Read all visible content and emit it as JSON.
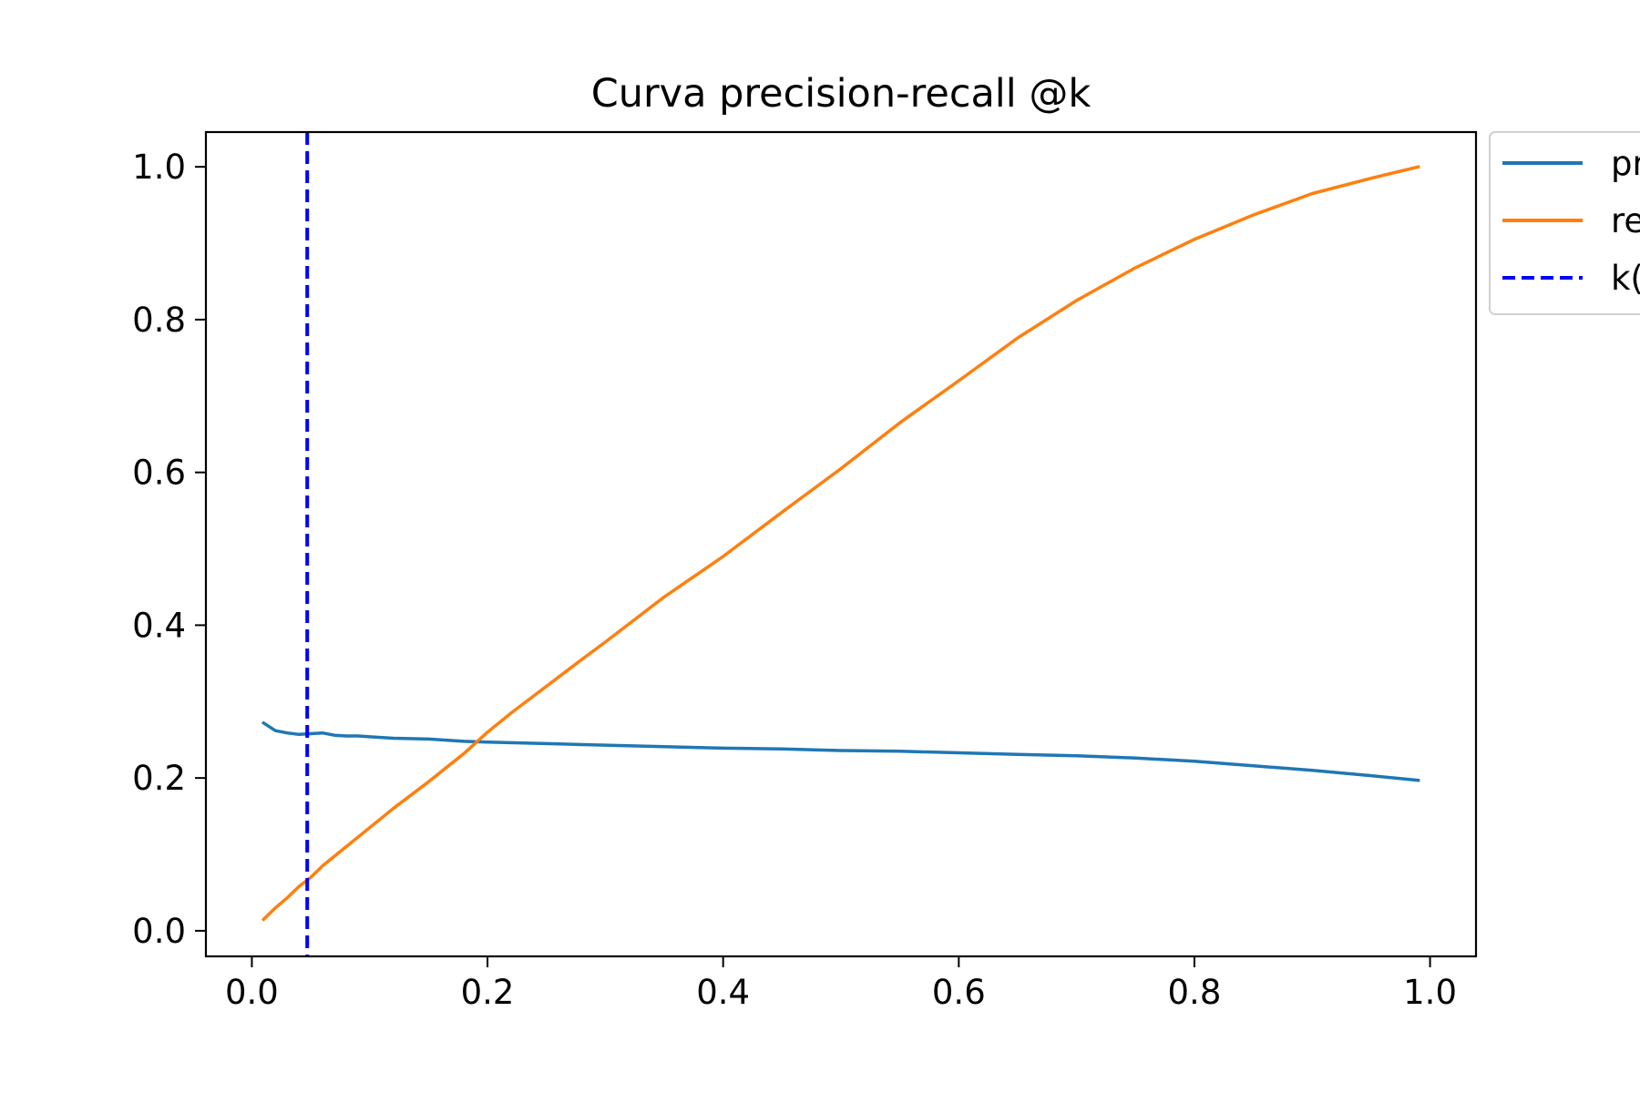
{
  "chart_data": {
    "type": "line",
    "title": "Curva precision-recall @k",
    "xlabel": "",
    "ylabel": "",
    "xlim": [
      -0.039,
      1.039
    ],
    "ylim": [
      -0.0335,
      1.0455
    ],
    "xticks": [
      "0.0",
      "0.2",
      "0.4",
      "0.6",
      "0.8",
      "1.0"
    ],
    "yticks": [
      "0.0",
      "0.2",
      "0.4",
      "0.6",
      "0.8",
      "1.0"
    ],
    "grid": false,
    "legend_position": "outside upper-right (clipped)",
    "series": [
      {
        "name": "pr",
        "color": "#1f77b4",
        "dash": "solid",
        "points": [
          [
            0.01,
            0.272
          ],
          [
            0.02,
            0.262
          ],
          [
            0.03,
            0.259
          ],
          [
            0.04,
            0.257
          ],
          [
            0.05,
            0.258
          ],
          [
            0.06,
            0.259
          ],
          [
            0.07,
            0.256
          ],
          [
            0.08,
            0.255
          ],
          [
            0.09,
            0.255
          ],
          [
            0.1,
            0.254
          ],
          [
            0.12,
            0.252
          ],
          [
            0.15,
            0.251
          ],
          [
            0.18,
            0.248
          ],
          [
            0.2,
            0.247
          ],
          [
            0.25,
            0.245
          ],
          [
            0.3,
            0.243
          ],
          [
            0.35,
            0.241
          ],
          [
            0.4,
            0.239
          ],
          [
            0.45,
            0.238
          ],
          [
            0.5,
            0.236
          ],
          [
            0.55,
            0.235
          ],
          [
            0.6,
            0.233
          ],
          [
            0.65,
            0.231
          ],
          [
            0.7,
            0.229
          ],
          [
            0.75,
            0.226
          ],
          [
            0.8,
            0.222
          ],
          [
            0.85,
            0.216
          ],
          [
            0.9,
            0.21
          ],
          [
            0.95,
            0.203
          ],
          [
            0.99,
            0.197
          ]
        ]
      },
      {
        "name": "re",
        "color": "#ff7f0e",
        "dash": "solid",
        "points": [
          [
            0.01,
            0.015
          ],
          [
            0.02,
            0.03
          ],
          [
            0.03,
            0.043
          ],
          [
            0.04,
            0.058
          ],
          [
            0.05,
            0.07
          ],
          [
            0.06,
            0.085
          ],
          [
            0.08,
            0.11
          ],
          [
            0.1,
            0.135
          ],
          [
            0.12,
            0.16
          ],
          [
            0.15,
            0.195
          ],
          [
            0.18,
            0.232
          ],
          [
            0.2,
            0.26
          ],
          [
            0.22,
            0.285
          ],
          [
            0.25,
            0.32
          ],
          [
            0.28,
            0.355
          ],
          [
            0.3,
            0.378
          ],
          [
            0.35,
            0.437
          ],
          [
            0.4,
            0.49
          ],
          [
            0.45,
            0.548
          ],
          [
            0.5,
            0.605
          ],
          [
            0.55,
            0.665
          ],
          [
            0.6,
            0.72
          ],
          [
            0.65,
            0.776
          ],
          [
            0.7,
            0.825
          ],
          [
            0.75,
            0.868
          ],
          [
            0.8,
            0.905
          ],
          [
            0.85,
            0.937
          ],
          [
            0.9,
            0.965
          ],
          [
            0.95,
            0.985
          ],
          [
            0.99,
            1.0
          ]
        ]
      },
      {
        "name": "k(",
        "color": "#0000ff",
        "dash": "dashed",
        "x_value": 0.047
      }
    ]
  }
}
